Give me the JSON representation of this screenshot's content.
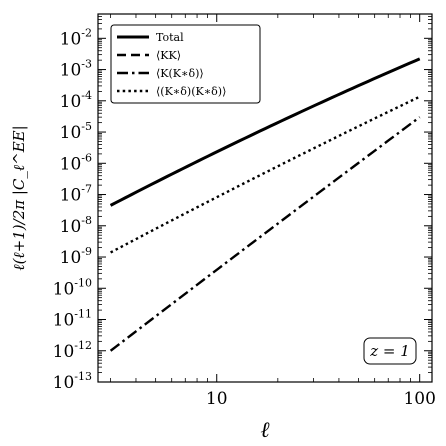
{
  "chart_data": {
    "type": "line",
    "xlabel": "ℓ",
    "ylabel": "ℓ(ℓ+1)/2π |C_ℓ^EE|",
    "xscale": "log",
    "yscale": "log",
    "xlim": [
      2.6,
      115
    ],
    "ylim": [
      1e-13,
      0.06
    ],
    "x_tick_labels": [
      "10",
      "100"
    ],
    "y_tick_exponents": [
      "-13",
      "-12",
      "-11",
      "-10",
      "-9",
      "-8",
      "-7",
      "-6",
      "-5",
      "-4",
      "-3",
      "-2"
    ],
    "y_tick_base": "10",
    "legend_position": "top-left",
    "annotation": "z = 1",
    "series": [
      {
        "name": "Total",
        "style": "solid",
        "x": [
          3,
          100
        ],
        "y": [
          4.5e-08,
          0.0022
        ]
      },
      {
        "name": "⟨KK⟩",
        "style": "dashed",
        "x": [
          3,
          100
        ],
        "y": [
          4.5e-08,
          0.0022
        ]
      },
      {
        "name": "⟨K(K∗δ)⟩",
        "style": "dashdot",
        "x": [
          3,
          100
        ],
        "y": [
          1e-12,
          3e-05
        ]
      },
      {
        "name": "⟨(K∗δ)(K∗δ)⟩",
        "style": "dotted",
        "x": [
          3,
          100
        ],
        "y": [
          1.4e-09,
          0.000135
        ]
      }
    ]
  }
}
